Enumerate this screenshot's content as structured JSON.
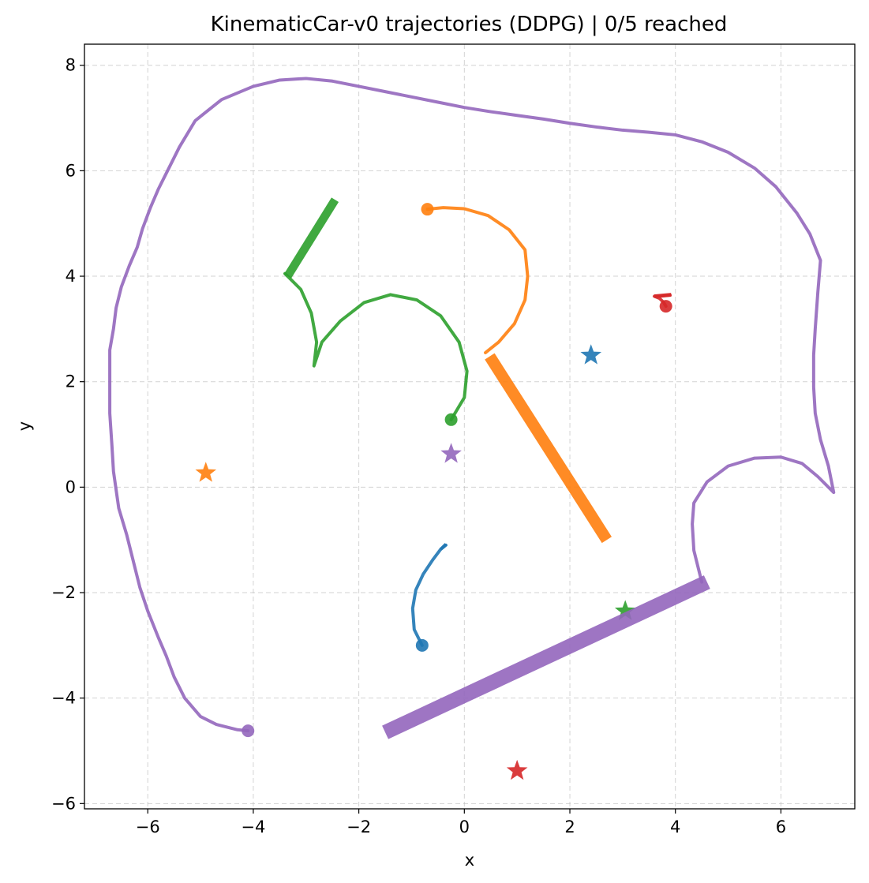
{
  "chart_data": {
    "type": "line",
    "title": "KinematicCar-v0 trajectories (DDPG) | 0/5 reached",
    "xlabel": "x",
    "ylabel": "y",
    "xlim": [
      -7.2,
      7.4
    ],
    "ylim": [
      -6.1,
      8.4
    ],
    "xticks": [
      -6,
      -4,
      -2,
      0,
      2,
      4,
      6
    ],
    "yticks": [
      -6,
      -4,
      -2,
      0,
      2,
      4,
      6,
      8
    ],
    "xtick_labels": [
      "−6",
      "−4",
      "−2",
      "0",
      "2",
      "4",
      "6"
    ],
    "ytick_labels": [
      "−6",
      "−4",
      "−2",
      "0",
      "2",
      "4",
      "6",
      "8"
    ],
    "grid": true,
    "series": [
      {
        "color": "#1f77b4",
        "start": [
          -0.8,
          -3.0
        ],
        "goal": [
          2.4,
          2.5
        ],
        "path": [
          [
            -0.8,
            -3.0
          ],
          [
            -0.95,
            -2.7
          ],
          [
            -0.98,
            -2.3
          ],
          [
            -0.92,
            -1.95
          ],
          [
            -0.78,
            -1.65
          ],
          [
            -0.6,
            -1.38
          ],
          [
            -0.45,
            -1.18
          ],
          [
            -0.35,
            -1.1
          ]
        ],
        "end_segment": [
          [
            -0.45,
            -1.18
          ],
          [
            -0.35,
            -1.08
          ]
        ],
        "end_width": 0.02
      },
      {
        "color": "#ff7f0e",
        "start": [
          -0.7,
          5.27
        ],
        "goal": [
          -4.9,
          0.27
        ],
        "path": [
          [
            -0.7,
            5.27
          ],
          [
            -0.4,
            5.3
          ],
          [
            0.0,
            5.28
          ],
          [
            0.45,
            5.15
          ],
          [
            0.85,
            4.88
          ],
          [
            1.15,
            4.5
          ],
          [
            1.2,
            4.0
          ],
          [
            1.15,
            3.55
          ],
          [
            0.95,
            3.1
          ],
          [
            0.65,
            2.75
          ],
          [
            0.4,
            2.55
          ]
        ],
        "end_segment": [
          [
            0.48,
            2.48
          ],
          [
            2.7,
            -1.0
          ]
        ],
        "end_width": 0.22
      },
      {
        "color": "#2ca02c",
        "start": [
          -0.25,
          1.28
        ],
        "goal": [
          3.05,
          -2.35
        ],
        "path": [
          [
            -0.25,
            1.28
          ],
          [
            0.0,
            1.7
          ],
          [
            0.05,
            2.2
          ],
          [
            -0.1,
            2.75
          ],
          [
            -0.45,
            3.25
          ],
          [
            -0.9,
            3.55
          ],
          [
            -1.4,
            3.65
          ],
          [
            -1.9,
            3.5
          ],
          [
            -2.35,
            3.15
          ],
          [
            -2.7,
            2.75
          ],
          [
            -2.85,
            2.3
          ],
          [
            -2.8,
            2.75
          ],
          [
            -2.9,
            3.3
          ],
          [
            -3.1,
            3.75
          ],
          [
            -3.4,
            4.05
          ]
        ],
        "end_segment": [
          [
            -3.35,
            4.0
          ],
          [
            -2.45,
            5.45
          ]
        ],
        "end_width": 0.16
      },
      {
        "color": "#d62728",
        "start": [
          3.82,
          3.43
        ],
        "goal": [
          1.0,
          -5.38
        ],
        "path": [
          [
            3.82,
            3.43
          ],
          [
            3.78,
            3.5
          ],
          [
            3.7,
            3.58
          ],
          [
            3.6,
            3.62
          ],
          [
            3.7,
            3.62
          ],
          [
            3.9,
            3.64
          ]
        ],
        "end_segment": [
          [
            3.6,
            3.62
          ],
          [
            3.92,
            3.65
          ]
        ],
        "end_width": 0.07
      },
      {
        "color": "#9467bd",
        "start": [
          -4.1,
          -4.62
        ],
        "goal": [
          -0.25,
          0.63
        ],
        "path": [
          [
            -4.1,
            -4.62
          ],
          [
            -4.3,
            -4.6
          ],
          [
            -4.7,
            -4.5
          ],
          [
            -5.0,
            -4.35
          ],
          [
            -5.3,
            -4.0
          ],
          [
            -5.5,
            -3.6
          ],
          [
            -5.65,
            -3.2
          ],
          [
            -5.8,
            -2.85
          ],
          [
            -6.0,
            -2.35
          ],
          [
            -6.15,
            -1.9
          ],
          [
            -6.3,
            -1.3
          ],
          [
            -6.4,
            -0.9
          ],
          [
            -6.55,
            -0.4
          ],
          [
            -6.65,
            0.3
          ],
          [
            -6.68,
            0.8
          ],
          [
            -6.72,
            1.4
          ],
          [
            -6.72,
            1.9
          ],
          [
            -6.72,
            2.6
          ],
          [
            -6.65,
            3.0
          ],
          [
            -6.6,
            3.4
          ],
          [
            -6.5,
            3.8
          ],
          [
            -6.35,
            4.2
          ],
          [
            -6.2,
            4.55
          ],
          [
            -6.1,
            4.9
          ],
          [
            -5.95,
            5.3
          ],
          [
            -5.8,
            5.65
          ],
          [
            -5.6,
            6.05
          ],
          [
            -5.4,
            6.45
          ],
          [
            -5.1,
            6.95
          ],
          [
            -4.6,
            7.35
          ],
          [
            -4.0,
            7.6
          ],
          [
            -3.5,
            7.72
          ],
          [
            -3.0,
            7.75
          ],
          [
            -2.5,
            7.7
          ],
          [
            -2.0,
            7.6
          ],
          [
            -1.5,
            7.5
          ],
          [
            -1.0,
            7.4
          ],
          [
            -0.5,
            7.3
          ],
          [
            0.0,
            7.2
          ],
          [
            0.5,
            7.12
          ],
          [
            1.0,
            7.05
          ],
          [
            1.5,
            6.98
          ],
          [
            2.0,
            6.9
          ],
          [
            2.5,
            6.83
          ],
          [
            3.0,
            6.77
          ],
          [
            3.5,
            6.73
          ],
          [
            4.0,
            6.68
          ],
          [
            4.5,
            6.55
          ],
          [
            5.0,
            6.35
          ],
          [
            5.5,
            6.05
          ],
          [
            5.9,
            5.7
          ],
          [
            6.3,
            5.2
          ],
          [
            6.55,
            4.8
          ],
          [
            6.75,
            4.3
          ],
          [
            6.7,
            3.7
          ],
          [
            6.65,
            3.0
          ],
          [
            6.62,
            2.5
          ],
          [
            6.62,
            1.9
          ],
          [
            6.65,
            1.4
          ],
          [
            6.75,
            0.9
          ],
          [
            6.9,
            0.4
          ],
          [
            7.0,
            -0.1
          ],
          [
            6.7,
            0.2
          ],
          [
            6.4,
            0.45
          ],
          [
            6.0,
            0.57
          ],
          [
            5.5,
            0.55
          ],
          [
            5.0,
            0.4
          ],
          [
            4.6,
            0.1
          ],
          [
            4.35,
            -0.3
          ],
          [
            4.32,
            -0.7
          ],
          [
            4.35,
            -1.2
          ],
          [
            4.45,
            -1.6
          ],
          [
            4.5,
            -1.8
          ]
        ],
        "end_segment": [
          [
            4.6,
            -1.8
          ],
          [
            -1.5,
            -4.65
          ]
        ],
        "end_width": 0.28
      }
    ]
  }
}
